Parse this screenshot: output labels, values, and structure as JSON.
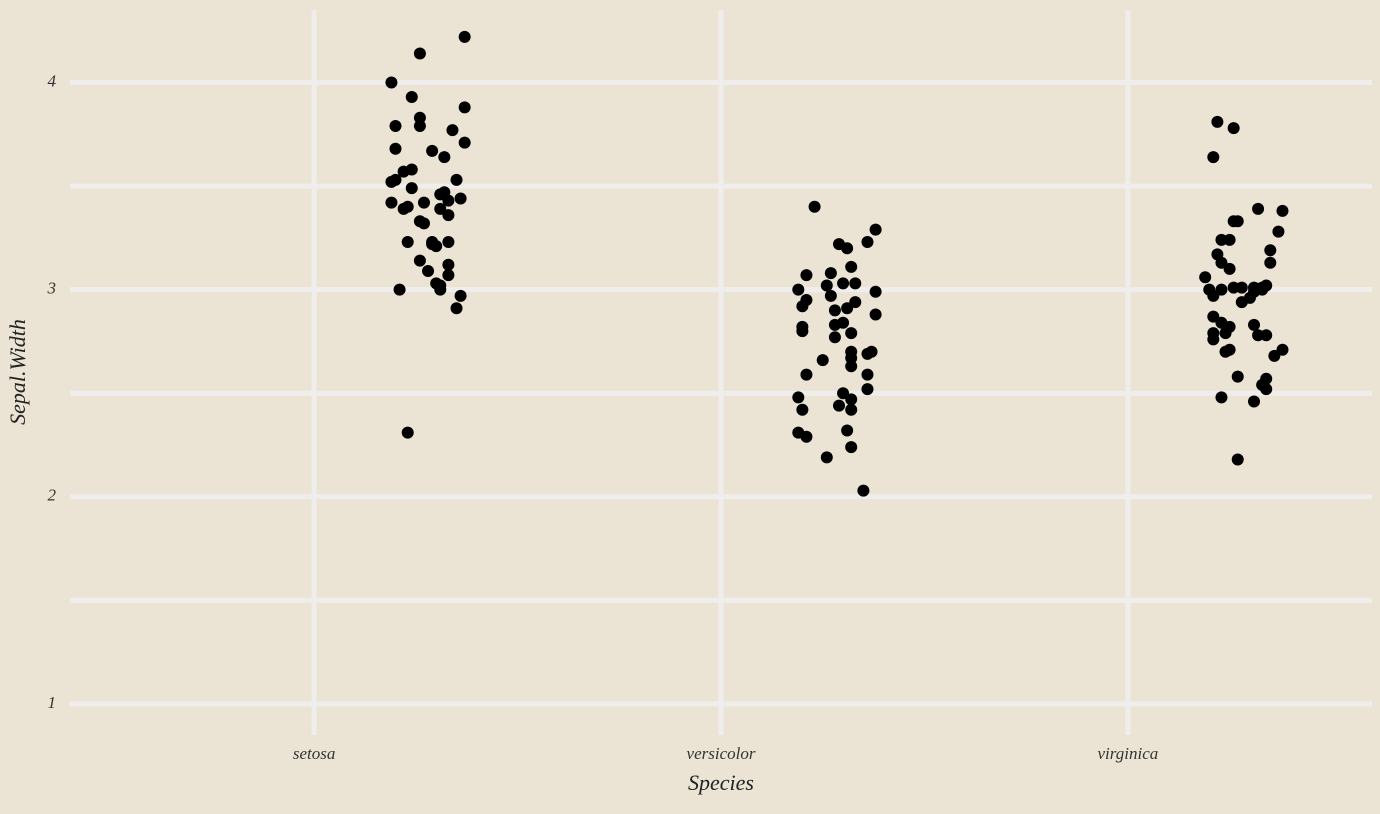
{
  "chart_data": {
    "type": "scatter",
    "x_label": "Species",
    "y_label": "Sepal.Width",
    "xlim": [
      0.4,
      3.6
    ],
    "xticks": [
      {
        "value": 1,
        "label": "setosa"
      },
      {
        "value": 2,
        "label": "versicolor"
      },
      {
        "value": 3,
        "label": "virginica"
      }
    ],
    "ylim": [
      0.85,
      4.35
    ],
    "yticks": [
      1,
      2,
      3,
      4
    ],
    "yminor": [
      1.5,
      2.5,
      3.5
    ],
    "grid": true,
    "color": "#000000",
    "background": "#ebe4d4",
    "grid_color": "#f0eeec",
    "x": [
      1.37,
      1.26,
      1.19,
      1.24,
      1.37,
      1.26,
      1.2,
      1.26,
      1.34,
      1.37,
      1.2,
      1.29,
      1.32,
      1.22,
      1.24,
      1.2,
      1.19,
      1.35,
      1.24,
      1.32,
      1.31,
      1.36,
      1.19,
      1.27,
      1.22,
      1.23,
      1.33,
      1.31,
      1.33,
      1.26,
      1.27,
      1.23,
      1.29,
      1.33,
      1.3,
      1.29,
      1.26,
      1.33,
      1.28,
      1.33,
      1.3,
      1.31,
      1.31,
      1.21,
      1.36,
      1.35,
      1.23,
      2.23,
      2.38,
      2.36,
      2.29,
      2.31,
      2.21,
      2.27,
      2.32,
      2.26,
      2.3,
      2.33,
      2.19,
      2.38,
      2.27,
      2.21,
      2.2,
      2.33,
      2.28,
      2.31,
      2.38,
      2.3,
      2.28,
      2.2,
      2.2,
      2.32,
      2.28,
      2.32,
      2.37,
      2.36,
      2.32,
      2.25,
      2.32,
      2.21,
      2.36,
      2.36,
      2.3,
      2.19,
      2.32,
      2.29,
      2.2,
      2.32,
      2.31,
      2.19,
      2.21,
      2.32,
      2.26,
      2.35,
      3.22,
      3.26,
      3.21,
      3.32,
      3.38,
      3.26,
      3.27,
      3.23,
      3.25,
      3.37,
      3.35,
      3.22,
      3.35,
      3.23,
      3.25,
      3.19,
      3.26,
      3.28,
      3.2,
      3.23,
      3.31,
      3.33,
      3.34,
      3.31,
      3.33,
      3.21,
      3.3,
      3.28,
      3.21,
      3.23,
      3.31,
      3.25,
      3.21,
      3.24,
      3.34,
      3.32,
      3.21,
      3.25,
      3.24,
      3.38,
      3.36,
      3.27,
      3.34,
      3.33,
      3.34,
      3.23,
      3.31,
      3.27
    ],
    "y": [
      4.22,
      4.14,
      4.0,
      3.93,
      3.88,
      3.83,
      3.79,
      3.79,
      3.77,
      3.71,
      3.68,
      3.67,
      3.64,
      3.57,
      3.58,
      3.53,
      3.52,
      3.53,
      3.49,
      3.47,
      3.46,
      3.44,
      3.42,
      3.42,
      3.39,
      3.4,
      3.43,
      3.39,
      3.36,
      3.33,
      3.32,
      3.23,
      3.23,
      3.23,
      3.21,
      3.22,
      3.14,
      3.12,
      3.09,
      3.07,
      3.03,
      3.02,
      3.0,
      3.0,
      2.97,
      2.91,
      2.31,
      3.4,
      3.29,
      3.23,
      3.22,
      3.2,
      3.07,
      3.08,
      3.11,
      3.02,
      3.03,
      3.03,
      3.0,
      2.99,
      2.97,
      2.95,
      2.92,
      2.94,
      2.9,
      2.91,
      2.88,
      2.84,
      2.83,
      2.82,
      2.8,
      2.79,
      2.77,
      2.7,
      2.7,
      2.69,
      2.67,
      2.66,
      2.63,
      2.59,
      2.59,
      2.52,
      2.5,
      2.48,
      2.47,
      2.44,
      2.42,
      2.42,
      2.32,
      2.31,
      2.29,
      2.24,
      2.19,
      2.03,
      3.81,
      3.78,
      3.64,
      3.39,
      3.38,
      3.33,
      3.33,
      3.24,
      3.24,
      3.28,
      3.19,
      3.17,
      3.13,
      3.13,
      3.1,
      3.06,
      3.01,
      3.01,
      3.0,
      3.0,
      3.01,
      3.0,
      3.02,
      2.99,
      3.01,
      2.97,
      2.96,
      2.94,
      2.87,
      2.84,
      2.83,
      2.82,
      2.79,
      2.79,
      2.78,
      2.78,
      2.76,
      2.71,
      2.7,
      2.71,
      2.68,
      2.58,
      2.57,
      2.54,
      2.52,
      2.48,
      2.46,
      2.18
    ]
  }
}
